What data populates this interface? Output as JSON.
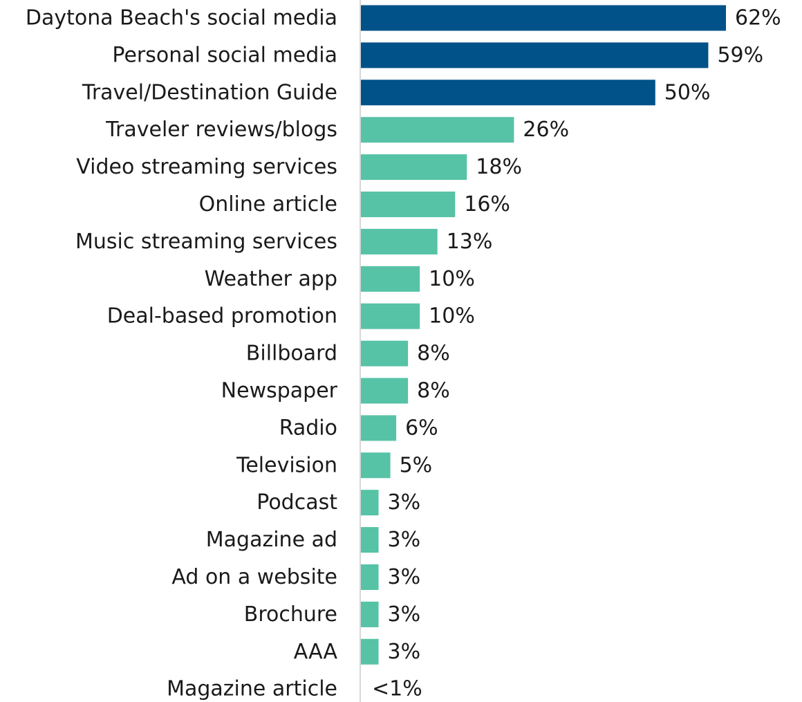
{
  "chart_data": {
    "type": "bar",
    "orientation": "horizontal",
    "title": "",
    "xlabel": "",
    "ylabel": "",
    "xlim": [
      0,
      62
    ],
    "grid": false,
    "legend": "none",
    "colors": {
      "highlight": "#005288",
      "standard": "#56c2a6",
      "axis": "#c8c8c8",
      "text": "#1a1a1a"
    },
    "categories": [
      "Daytona Beach's social media",
      "Personal social media",
      "Travel/Destination Guide",
      "Traveler reviews/blogs",
      "Video streaming services",
      "Online article",
      "Music streaming services",
      "Weather app",
      "Deal-based promotion",
      "Billboard",
      "Newspaper",
      "Radio",
      "Television",
      "Podcast",
      "Magazine ad",
      "Ad on a website",
      "Brochure",
      "AAA",
      "Magazine article"
    ],
    "values": [
      62,
      59,
      50,
      26,
      18,
      16,
      13,
      10,
      10,
      8,
      8,
      6,
      5,
      3,
      3,
      3,
      3,
      3,
      0
    ],
    "value_labels": [
      "62%",
      "59%",
      "50%",
      "26%",
      "18%",
      "16%",
      "13%",
      "10%",
      "10%",
      "8%",
      "8%",
      "6%",
      "5%",
      "3%",
      "3%",
      "3%",
      "3%",
      "3%",
      "<1%"
    ],
    "highlighted": [
      true,
      true,
      true,
      false,
      false,
      false,
      false,
      false,
      false,
      false,
      false,
      false,
      false,
      false,
      false,
      false,
      false,
      false,
      false
    ]
  }
}
